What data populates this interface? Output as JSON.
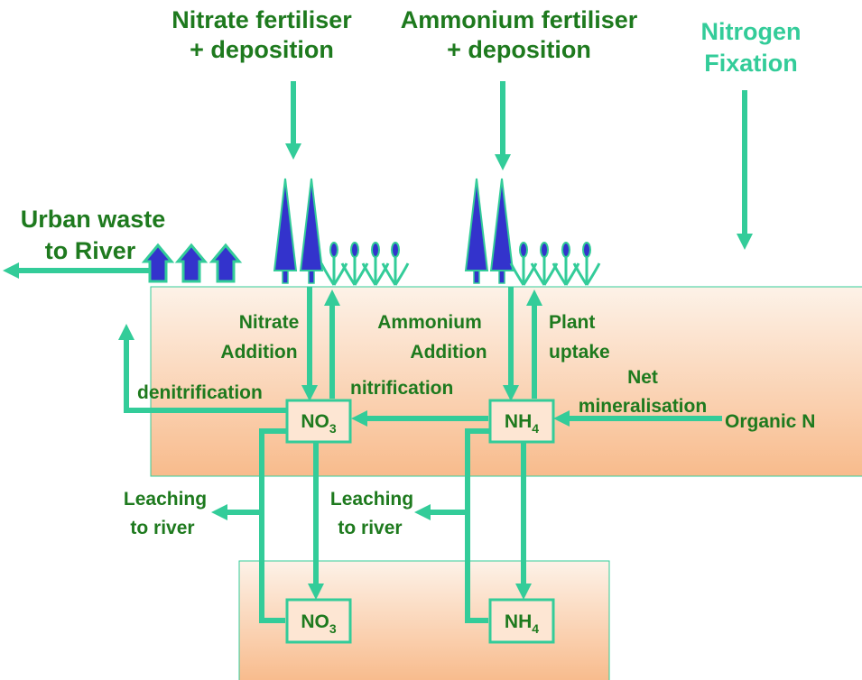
{
  "labels": {
    "nitrate_fertiliser": [
      "Nitrate fertiliser",
      "+ deposition"
    ],
    "ammonium_fertiliser": [
      "Ammonium fertiliser",
      "+ deposition"
    ],
    "nitrogen_fixation": [
      "Nitrogen",
      "Fixation"
    ],
    "urban_waste": [
      "Urban waste",
      "to River"
    ],
    "nitrate_addition": [
      "Nitrate",
      "Addition"
    ],
    "ammonium_addition": [
      "Ammonium",
      "Addition"
    ],
    "plant_uptake": [
      "Plant",
      "uptake"
    ],
    "net_mineralisation": [
      "Net",
      "mineralisation"
    ],
    "denitrification": "denitrification",
    "nitrification": "nitrification",
    "organic_n": "Organic N",
    "leaching": [
      [
        "Leaching",
        "to river"
      ],
      [
        "Leaching",
        "to river"
      ]
    ]
  },
  "nodes": [
    {
      "formula": "NO",
      "subscript": "3"
    },
    {
      "formula": "NH",
      "subscript": "4"
    },
    {
      "formula": "NO",
      "subscript": "3"
    },
    {
      "formula": "NH",
      "subscript": "4"
    }
  ]
}
